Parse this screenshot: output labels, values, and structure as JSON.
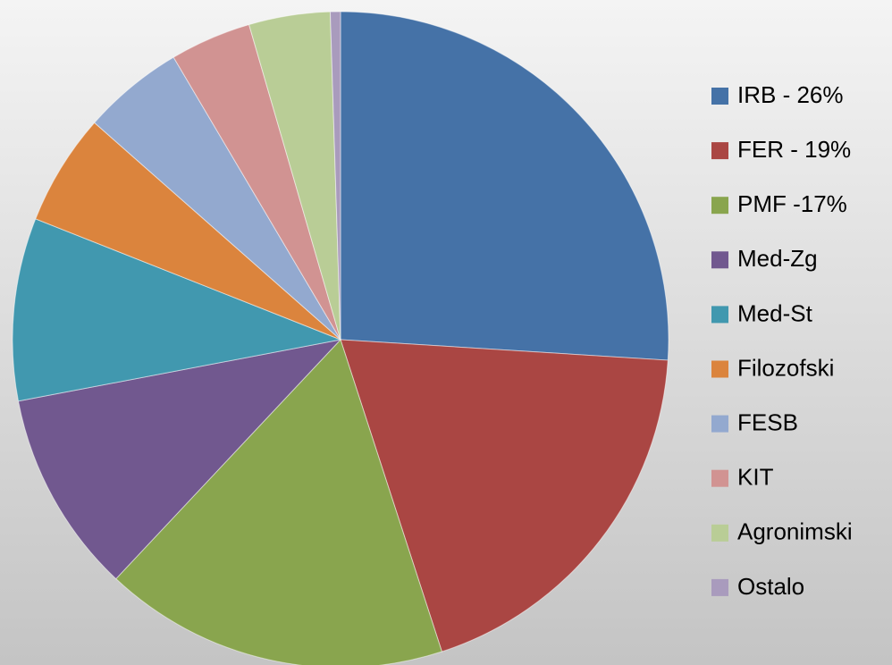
{
  "chart_data": {
    "type": "pie",
    "categories": [
      "IRB - 26%",
      "FER - 19%",
      "PMF -17%",
      "Med-Zg",
      "Med-St",
      "Filozofski",
      "FESB",
      "KIT",
      "Agronimski",
      "Ostalo"
    ],
    "values": [
      26,
      19,
      17,
      10,
      9,
      5.5,
      5,
      4,
      4,
      0.5
    ],
    "colors": [
      "#4572a7",
      "#aa4643",
      "#89a54e",
      "#71588f",
      "#4198af",
      "#db843d",
      "#93a9cf",
      "#d19392",
      "#b9cd96",
      "#a99bbd"
    ],
    "legend": "right"
  }
}
